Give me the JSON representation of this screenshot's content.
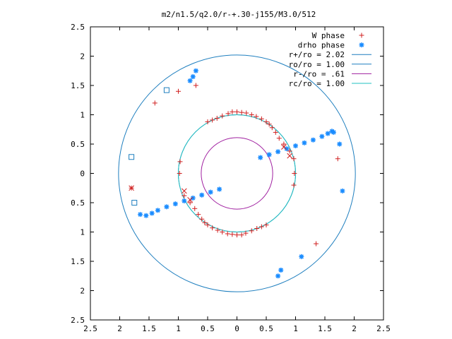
{
  "chart_data": {
    "type": "scatter",
    "title": "m2/n1.5/q2.0/r-+.30-j155/M3.0/512",
    "xlabel": "",
    "ylabel": "",
    "xlim": [
      -2.5,
      2.5
    ],
    "ylim": [
      -2.5,
      2.5
    ],
    "grid": false,
    "legend_position": "top-right",
    "x_ticks": [
      -2.5,
      -2,
      -1.5,
      -1,
      -0.5,
      0,
      0.5,
      1,
      1.5,
      2,
      2.5
    ],
    "x_tick_labels": [
      "2.5",
      "2",
      "1.5",
      "1",
      "0.5",
      "0",
      "0.5",
      "1",
      "1.5",
      "2",
      "2.5"
    ],
    "y_ticks": [
      2.5,
      2,
      1.5,
      1,
      0.5,
      0,
      -0.5,
      -1,
      -1.5,
      -2,
      -2.5
    ],
    "y_tick_labels": [
      "2.5",
      "2",
      "1.5",
      "1",
      "0.5",
      "0",
      "0.5",
      "1",
      "1.5",
      "2",
      "2.5"
    ],
    "circles": [
      {
        "label": "r+/ro = 2.02",
        "radius": 2.02,
        "color": "#1f7fbf"
      },
      {
        "label": "ro/ro = 1.00",
        "radius": 1.0,
        "color": "#1f7fbf"
      },
      {
        "label": "r-/ro =  .61",
        "radius": 0.61,
        "color": "#a020a0"
      },
      {
        "label": "rc/ro = 1.00",
        "radius": 1.0,
        "color": "#20c0c0"
      }
    ],
    "series": [
      {
        "name": "W phase",
        "marker": "plus",
        "color": "#d02020",
        "points": [
          [
            -0.7,
            1.5
          ],
          [
            -1.0,
            1.4
          ],
          [
            -1.4,
            1.2
          ],
          [
            -1.8,
            -0.25
          ],
          [
            1.72,
            0.25
          ],
          [
            1.35,
            -1.2
          ],
          [
            -0.98,
            0.0
          ],
          [
            0.98,
            0.0
          ],
          [
            -0.97,
            0.2
          ],
          [
            -0.5,
            0.88
          ],
          [
            -0.42,
            0.91
          ],
          [
            -0.34,
            0.94
          ],
          [
            -0.25,
            0.98
          ],
          [
            -0.15,
            1.02
          ],
          [
            -0.08,
            1.05
          ],
          [
            0.0,
            1.05
          ],
          [
            0.08,
            1.04
          ],
          [
            0.16,
            1.03
          ],
          [
            0.25,
            1.0
          ],
          [
            0.33,
            0.97
          ],
          [
            0.42,
            0.93
          ],
          [
            0.5,
            0.88
          ],
          [
            0.55,
            0.84
          ],
          [
            0.6,
            0.78
          ],
          [
            0.66,
            0.7
          ],
          [
            0.72,
            0.6
          ],
          [
            0.8,
            0.5
          ],
          [
            0.9,
            0.38
          ],
          [
            0.97,
            0.25
          ],
          [
            0.97,
            -0.2
          ],
          [
            0.5,
            -0.88
          ],
          [
            0.42,
            -0.91
          ],
          [
            0.34,
            -0.94
          ],
          [
            0.25,
            -0.98
          ],
          [
            0.15,
            -1.02
          ],
          [
            0.08,
            -1.05
          ],
          [
            0.0,
            -1.05
          ],
          [
            -0.08,
            -1.04
          ],
          [
            -0.16,
            -1.03
          ],
          [
            -0.25,
            -1.0
          ],
          [
            -0.33,
            -0.97
          ],
          [
            -0.42,
            -0.93
          ],
          [
            -0.5,
            -0.88
          ],
          [
            -0.55,
            -0.84
          ],
          [
            -0.6,
            -0.78
          ],
          [
            -0.66,
            -0.7
          ],
          [
            -0.72,
            -0.6
          ],
          [
            -0.8,
            -0.5
          ],
          [
            -0.9,
            -0.38
          ]
        ]
      },
      {
        "name": "drho phase",
        "marker": "star",
        "color": "#1a8cff",
        "points": [
          [
            -0.7,
            1.75
          ],
          [
            -0.75,
            1.65
          ],
          [
            -0.8,
            1.58
          ],
          [
            1.8,
            -0.3
          ],
          [
            1.75,
            0.5
          ],
          [
            1.1,
            -1.42
          ],
          [
            0.75,
            -1.65
          ],
          [
            0.7,
            -1.75
          ],
          [
            0.4,
            0.27
          ],
          [
            0.55,
            0.32
          ],
          [
            0.7,
            0.37
          ],
          [
            0.85,
            0.42
          ],
          [
            1.0,
            0.47
          ],
          [
            1.15,
            0.52
          ],
          [
            1.3,
            0.57
          ],
          [
            1.45,
            0.63
          ],
          [
            1.55,
            0.68
          ],
          [
            1.62,
            0.72
          ],
          [
            1.65,
            0.7
          ],
          [
            -0.3,
            -0.27
          ],
          [
            -0.45,
            -0.32
          ],
          [
            -0.6,
            -0.37
          ],
          [
            -0.75,
            -0.42
          ],
          [
            -0.9,
            -0.47
          ],
          [
            -1.05,
            -0.52
          ],
          [
            -1.2,
            -0.57
          ],
          [
            -1.35,
            -0.63
          ],
          [
            -1.45,
            -0.68
          ],
          [
            -1.55,
            -0.72
          ],
          [
            -1.65,
            -0.7
          ]
        ]
      },
      {
        "name": "",
        "marker": "square",
        "color": "#1f7fbf",
        "points": [
          [
            -1.8,
            0.28
          ],
          [
            -1.75,
            -0.5
          ],
          [
            -1.2,
            1.42
          ]
        ]
      },
      {
        "name": "",
        "marker": "x",
        "color": "#d02020",
        "points": [
          [
            -1.8,
            -0.25
          ],
          [
            -0.9,
            -0.3
          ],
          [
            0.9,
            0.3
          ],
          [
            -0.8,
            -0.45
          ],
          [
            0.8,
            0.45
          ]
        ]
      }
    ]
  },
  "legend_entries": [
    {
      "label": "W phase",
      "color": "#d02020",
      "marker": "plus"
    },
    {
      "label": "drho phase",
      "color": "#1a8cff",
      "marker": "star"
    },
    {
      "label": "r+/ro = 2.02",
      "color": "#1f7fbf",
      "marker": "line"
    },
    {
      "label": "ro/ro = 1.00",
      "color": "#1f7fbf",
      "marker": "line"
    },
    {
      "label": "r-/ro =  .61",
      "color": "#a020a0",
      "marker": "line"
    },
    {
      "label": "rc/ro = 1.00",
      "color": "#20c0c0",
      "marker": "line"
    }
  ]
}
